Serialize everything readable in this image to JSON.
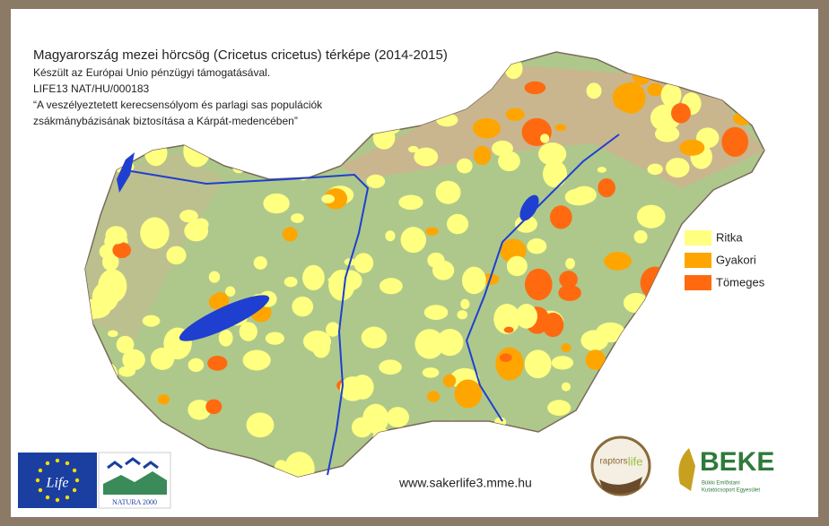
{
  "header": {
    "title": "Magyarország mezei hörcsög (Cricetus cricetus) térképe (2014-2015)",
    "lines": [
      "Készült az Európai Unio pénzügyi támogatásával.",
      "LIFE13 NAT/HU/000183",
      "“A veszélyeztetett kerecsensólyom és parlagi sas populációk",
      "zsákmánybázisának biztosítása a Kárpát-medencében”"
    ]
  },
  "legend": [
    {
      "label": "Ritka",
      "color": "#ffff80"
    },
    {
      "label": "Gyakori",
      "color": "#ffa500"
    },
    {
      "label": "Tömeges",
      "color": "#ff6a10"
    }
  ],
  "footer": {
    "url": "www.sakerlife3.mme.hu"
  },
  "logos": {
    "life": "Life",
    "natura": "NATURA 2000",
    "raptors": "raptors",
    "raptors_life": "life",
    "beke": "BEKE",
    "beke_sub": [
      "Bükki Emlőstani",
      "Kutatócsoport Egyesület"
    ]
  }
}
